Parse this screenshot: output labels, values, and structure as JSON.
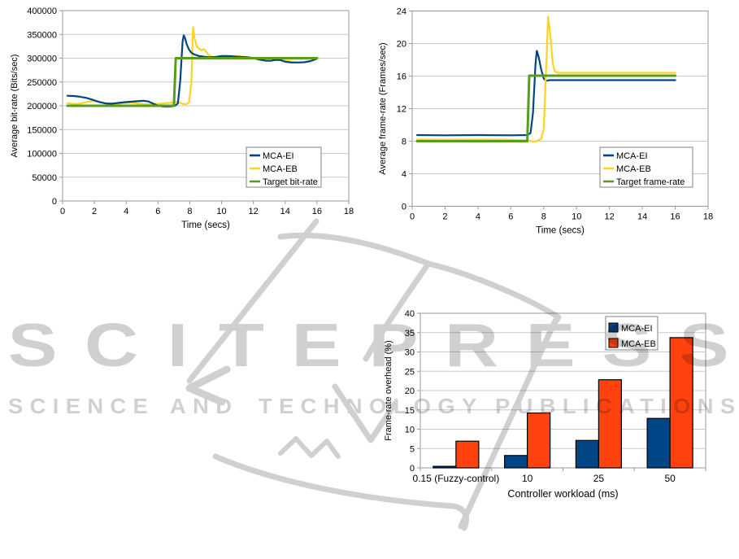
{
  "page": {
    "background": "#ffffff"
  },
  "palette": {
    "mca_ei": "#004586",
    "mca_eb_line": "#ffd320",
    "mca_eb_bar": "#ff420e",
    "target": "#579d1c",
    "axis": "#9a9a9a",
    "grid": "#c9c9c9",
    "text": "#000000",
    "legend_border": "#808080",
    "watermark": "#000000"
  },
  "watermark": {
    "brand": "SCITEPRESS",
    "tagline_words": [
      "SCIENCE",
      "AND",
      "TECHNOLOGY",
      "PUBLICATIONS"
    ],
    "opacity": 0.18
  },
  "chart_data": [
    {
      "id": "bitrate-line",
      "type": "line",
      "title": "",
      "xlabel": "Time (secs)",
      "ylabel": "Average bit-rate (Bits/sec)",
      "xlim": [
        0,
        18
      ],
      "ylim": [
        0,
        400000
      ],
      "xtick_step": 2,
      "ytick_step": 50000,
      "grid": "horizontal",
      "legend_position": "inside-bottom-right",
      "legend": [
        "MCA-EI",
        "MCA-EB",
        "Target bit-rate"
      ],
      "series": [
        {
          "name": "MCA-EI",
          "color": "#004586",
          "width": 2.2,
          "points": [
            [
              0.3,
              221000
            ],
            [
              0.7,
              220500
            ],
            [
              1.1,
              219000
            ],
            [
              1.5,
              216500
            ],
            [
              1.9,
              212500
            ],
            [
              2.3,
              208000
            ],
            [
              2.7,
              205000
            ],
            [
              3.1,
              204500
            ],
            [
              3.5,
              206000
            ],
            [
              3.9,
              207500
            ],
            [
              4.3,
              208500
            ],
            [
              4.7,
              209500
            ],
            [
              5.1,
              210500
            ],
            [
              5.4,
              209000
            ],
            [
              5.7,
              204500
            ],
            [
              6.0,
              200500
            ],
            [
              6.3,
              198500
            ],
            [
              6.6,
              198000
            ],
            [
              6.9,
              199000
            ],
            [
              7.1,
              200500
            ],
            [
              7.25,
              205000
            ],
            [
              7.4,
              253000
            ],
            [
              7.55,
              335000
            ],
            [
              7.62,
              348000
            ],
            [
              7.7,
              342000
            ],
            [
              7.8,
              330000
            ],
            [
              7.95,
              318000
            ],
            [
              8.1,
              311500
            ],
            [
              8.3,
              307500
            ],
            [
              8.6,
              304500
            ],
            [
              8.9,
              303000
            ],
            [
              9.2,
              302000
            ],
            [
              9.6,
              302500
            ],
            [
              10.0,
              304500
            ],
            [
              10.4,
              304500
            ],
            [
              10.8,
              303500
            ],
            [
              11.2,
              302500
            ],
            [
              11.6,
              302000
            ],
            [
              12.0,
              300000
            ],
            [
              12.4,
              297000
            ],
            [
              12.8,
              294500
            ],
            [
              13.1,
              294500
            ],
            [
              13.4,
              296500
            ],
            [
              13.7,
              296000
            ],
            [
              14.0,
              292500
            ],
            [
              14.4,
              291000
            ],
            [
              14.8,
              291000
            ],
            [
              15.2,
              291500
            ],
            [
              15.6,
              294000
            ],
            [
              16.0,
              299000
            ]
          ]
        },
        {
          "name": "MCA-EB",
          "color": "#ffd320",
          "width": 2.2,
          "points": [
            [
              0.3,
              205500
            ],
            [
              0.7,
              204000
            ],
            [
              1.1,
              204500
            ],
            [
              1.5,
              207500
            ],
            [
              1.9,
              210000
            ],
            [
              2.3,
              208500
            ],
            [
              2.7,
              205500
            ],
            [
              3.1,
              203500
            ],
            [
              3.5,
              204000
            ],
            [
              3.9,
              206000
            ],
            [
              4.3,
              206500
            ],
            [
              4.7,
              205000
            ],
            [
              5.1,
              203500
            ],
            [
              5.5,
              203000
            ],
            [
              5.9,
              204000
            ],
            [
              6.3,
              205000
            ],
            [
              6.7,
              206000
            ],
            [
              7.0,
              207000
            ],
            [
              7.2,
              208500
            ],
            [
              7.4,
              206000
            ],
            [
              7.6,
              203500
            ],
            [
              7.8,
              203500
            ],
            [
              7.95,
              207000
            ],
            [
              8.1,
              248000
            ],
            [
              8.2,
              365000
            ],
            [
              8.3,
              342000
            ],
            [
              8.45,
              324000
            ],
            [
              8.6,
              319500
            ],
            [
              8.75,
              317000
            ],
            [
              8.9,
              318500
            ],
            [
              9.0,
              315000
            ],
            [
              9.2,
              306500
            ],
            [
              9.5,
              301500
            ],
            [
              9.8,
              301000
            ],
            [
              10.2,
              303000
            ],
            [
              10.6,
              305000
            ],
            [
              11.0,
              304500
            ],
            [
              11.4,
              303000
            ],
            [
              11.8,
              301500
            ],
            [
              12.2,
              300000
            ],
            [
              12.6,
              298500
            ],
            [
              13.0,
              297000
            ],
            [
              13.4,
              296000
            ],
            [
              13.8,
              295500
            ],
            [
              14.2,
              294000
            ],
            [
              14.6,
              291500
            ],
            [
              15.0,
              291000
            ],
            [
              15.4,
              292000
            ],
            [
              15.8,
              296000
            ],
            [
              16.0,
              299500
            ]
          ]
        },
        {
          "name": "Target bit-rate",
          "color": "#579d1c",
          "width": 3,
          "points": [
            [
              0.3,
              200000
            ],
            [
              7.0,
              200000
            ],
            [
              7.12,
              300000
            ],
            [
              16.0,
              300000
            ]
          ]
        }
      ]
    },
    {
      "id": "framerate-line",
      "type": "line",
      "title": "",
      "xlabel": "Time (secs)",
      "ylabel": "Average frame-rate (Frames/sec)",
      "xlim": [
        0,
        18
      ],
      "ylim": [
        0,
        24
      ],
      "xtick_step": 2,
      "ytick_step": 4,
      "grid": "horizontal",
      "legend_position": "inside-bottom-right",
      "legend": [
        "MCA-EI",
        "MCA-EB",
        "Target frame-rate"
      ],
      "series": [
        {
          "name": "MCA-EI",
          "color": "#004586",
          "width": 2.2,
          "points": [
            [
              0.3,
              8.75
            ],
            [
              2.0,
              8.72
            ],
            [
              4.0,
              8.75
            ],
            [
              6.0,
              8.72
            ],
            [
              7.0,
              8.75
            ],
            [
              7.2,
              9.0
            ],
            [
              7.35,
              11.5
            ],
            [
              7.5,
              17.5
            ],
            [
              7.58,
              19.1
            ],
            [
              7.7,
              18.3
            ],
            [
              7.85,
              16.8
            ],
            [
              8.0,
              15.7
            ],
            [
              8.15,
              15.42
            ],
            [
              8.35,
              15.5
            ],
            [
              9.0,
              15.5
            ],
            [
              16.0,
              15.5
            ]
          ]
        },
        {
          "name": "MCA-EB",
          "color": "#ffd320",
          "width": 2.2,
          "points": [
            [
              0.3,
              8.2
            ],
            [
              2.0,
              8.18
            ],
            [
              4.0,
              8.2
            ],
            [
              6.0,
              8.18
            ],
            [
              7.05,
              8.1
            ],
            [
              7.3,
              7.95
            ],
            [
              7.6,
              8.0
            ],
            [
              7.85,
              8.3
            ],
            [
              8.0,
              9.5
            ],
            [
              8.18,
              18.5
            ],
            [
              8.27,
              23.3
            ],
            [
              8.4,
              21.0
            ],
            [
              8.55,
              17.5
            ],
            [
              8.68,
              16.55
            ],
            [
              8.85,
              16.4
            ],
            [
              10.0,
              16.4
            ],
            [
              16.0,
              16.4
            ]
          ]
        },
        {
          "name": "Target frame-rate",
          "color": "#579d1c",
          "width": 3,
          "points": [
            [
              0.3,
              8.0
            ],
            [
              7.0,
              8.0
            ],
            [
              7.12,
              16.05
            ],
            [
              16.0,
              16.05
            ]
          ]
        }
      ]
    },
    {
      "id": "overhead-bars",
      "type": "bar",
      "title": "",
      "xlabel": "Controller workload (ms)",
      "ylabel": "Frame-rate overhead (%)",
      "ylim": [
        0,
        40
      ],
      "ytick_step": 5,
      "grid": "horizontal",
      "legend_position": "inside-top-right",
      "categories": [
        "0.15 (Fuzzy-control)",
        "10",
        "25",
        "50"
      ],
      "series": [
        {
          "name": "MCA-EI",
          "color": "#004586",
          "values": [
            0.4,
            3.2,
            7.1,
            12.8
          ]
        },
        {
          "name": "MCA-EB",
          "color": "#ff420e",
          "values": [
            6.9,
            14.2,
            22.8,
            33.7
          ]
        }
      ]
    }
  ]
}
